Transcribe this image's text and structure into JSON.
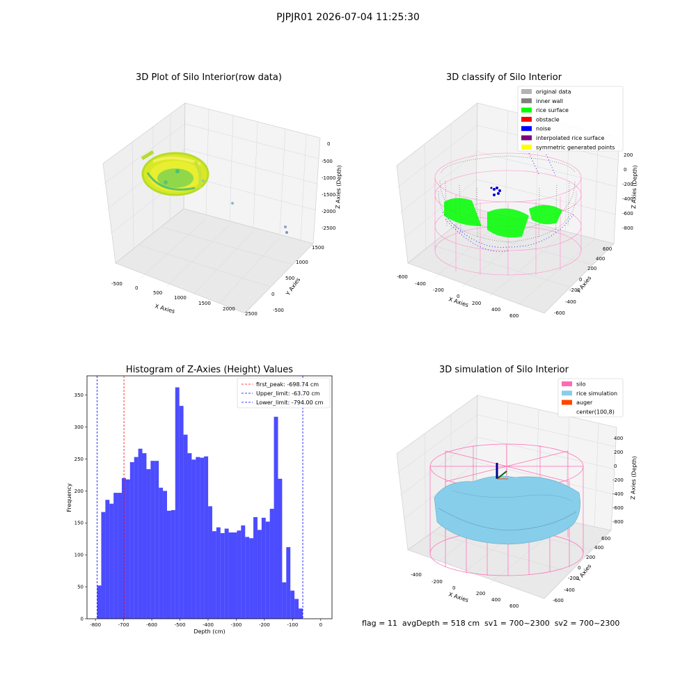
{
  "figure": {
    "suptitle": "PJPJR01 2026-07-04 11:25:30"
  },
  "footer": {
    "text": "flag = 11  avgDepth = 518 cm  sv1 = 700~2300  sv2 = 700~2300"
  },
  "chart_data": [
    {
      "type": "scatter",
      "title": "3D Plot of Silo Interior(row data)",
      "xlabel": "X Axies",
      "ylabel": "Y Axies",
      "zlabel": "Z Axies (Depth)",
      "x_ticks": [
        "-500",
        "0",
        "500",
        "1000",
        "1500",
        "2000",
        "2500"
      ],
      "y_ticks": [
        "-500",
        "0",
        "500",
        "1000",
        "1500"
      ],
      "z_ticks": [
        "0",
        "-500",
        "-1000",
        "-1500",
        "-2000",
        "-2500"
      ],
      "colormap": [
        "#a8e03a",
        "#e4ea1e",
        "#48c07a"
      ],
      "outliers": [
        {
          "x": 800,
          "y": -300,
          "z": -1100
        },
        {
          "x": 1300,
          "y": -200,
          "z": -1800
        },
        {
          "x": 2300,
          "y": 0,
          "z": -2500
        },
        {
          "x": 2400,
          "y": 0,
          "z": -2600
        }
      ]
    },
    {
      "type": "scatter",
      "title": "3D classify of Silo Interior",
      "zlabel": "Z Axies (Depth)",
      "xlabel": "X Axies",
      "ylabel": "Y Axies",
      "x_ticks": [
        "-600",
        "-400",
        "-200",
        "0",
        "200",
        "400",
        "600"
      ],
      "y_ticks": [
        "-600",
        "-400",
        "-200",
        "0",
        "200",
        "400",
        "600"
      ],
      "z_ticks": [
        "200",
        "0",
        "-200",
        "-400",
        "-600",
        "-800"
      ],
      "legend_position": "top-right",
      "legend": [
        {
          "label": "original data",
          "color": "#b3b3b3"
        },
        {
          "label": "inner wall",
          "color": "#808080"
        },
        {
          "label": "rice surface",
          "color": "#00ff00"
        },
        {
          "label": "obstacle",
          "color": "#ff0000"
        },
        {
          "label": "noise",
          "color": "#0000ff"
        },
        {
          "label": "interpolated rice surface",
          "color": "#800080"
        },
        {
          "label": "symmetric generated points",
          "color": "#ffff00"
        }
      ]
    },
    {
      "type": "bar",
      "title": "Histogram of Z-Axies (Height) Values",
      "xlabel": "Depth (cm)",
      "ylabel": "Frequency",
      "xlim": [
        -830,
        40
      ],
      "ylim": [
        0,
        380
      ],
      "x_ticks": [
        -800,
        -700,
        -600,
        -500,
        -400,
        -300,
        -200,
        -100,
        0
      ],
      "y_ticks": [
        0,
        50,
        100,
        150,
        200,
        250,
        300,
        350
      ],
      "bar_color": "#0000ff",
      "bin_start": -794,
      "bin_width": 14.6,
      "values": [
        52,
        167,
        186,
        180,
        197,
        197,
        220,
        218,
        245,
        253,
        266,
        259,
        234,
        247,
        247,
        205,
        200,
        169,
        170,
        362,
        333,
        288,
        259,
        249,
        253,
        252,
        254,
        176,
        137,
        143,
        134,
        141,
        135,
        135,
        138,
        146,
        128,
        126,
        159,
        139,
        158,
        152,
        172,
        316,
        219,
        57,
        112,
        44,
        31,
        16
      ],
      "lines": [
        {
          "label": "first_peak: -698.74 cm",
          "x": -698.74,
          "color": "#ff0000"
        },
        {
          "label": "Upper_limit: -63.70 cm",
          "x": -63.7,
          "color": "#0000ff"
        },
        {
          "label": "Lower_limit: -794.00 cm",
          "x": -794.0,
          "color": "#0000ff"
        }
      ],
      "legend_position": "top-right"
    },
    {
      "type": "surface",
      "title": "3D simulation of Silo Interior",
      "zlabel": "Z Axies (Depth)",
      "xlabel": "X Axies",
      "ylabel": "Y Axies",
      "x_ticks": [
        "-400",
        "-200",
        "0",
        "200",
        "400",
        "600"
      ],
      "y_ticks": [
        "-600",
        "-400",
        "-200",
        "0",
        "200",
        "400",
        "600"
      ],
      "z_ticks": [
        "400",
        "200",
        "0",
        "-200",
        "-400",
        "-600",
        "-800"
      ],
      "legend_position": "top-right",
      "legend": [
        {
          "label": "silo",
          "color": "#ff69b4"
        },
        {
          "label": "rice simulation",
          "color": "#87ceeb"
        },
        {
          "label": "auger",
          "color": "#ff4500"
        },
        {
          "label": "center(100,8)",
          "color": "#ffffff"
        }
      ]
    }
  ]
}
